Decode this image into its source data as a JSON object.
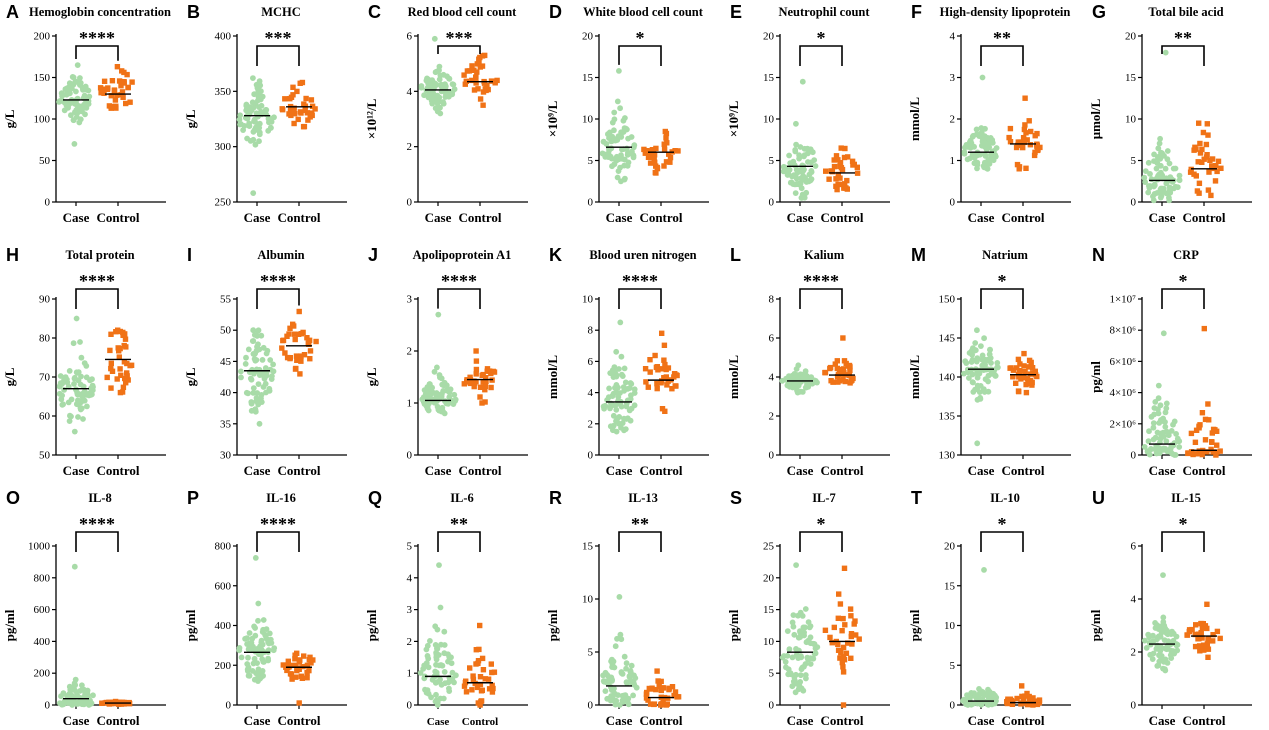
{
  "colors": {
    "case": "#a8dba8",
    "control": "#f07216",
    "axis": "#000000"
  },
  "categories": [
    "Case",
    "Control"
  ],
  "chart_data": [
    {
      "letter": "A",
      "type": "scatter",
      "title": "Hemoglobin concentration",
      "ylabel": "g/L",
      "ylim": [
        0,
        200
      ],
      "yticks": [
        "0",
        "50",
        "100",
        "150",
        "200"
      ],
      "tickvals": [
        0,
        50,
        100,
        150,
        200
      ],
      "sig": "****",
      "case": {
        "n": 75,
        "center": 124,
        "spread": 13,
        "min": 70,
        "max": 165,
        "median": 123
      },
      "control": {
        "n": 35,
        "center": 134,
        "spread": 14,
        "min": 113,
        "max": 163,
        "median": 130
      }
    },
    {
      "letter": "B",
      "type": "scatter",
      "title": "MCHC",
      "ylabel": "g/L",
      "ylim": [
        250,
        400
      ],
      "yticks": [
        "250",
        "300",
        "350",
        "400"
      ],
      "tickvals": [
        250,
        300,
        350,
        400
      ],
      "sig": "***",
      "case": {
        "n": 75,
        "center": 325,
        "spread": 14,
        "min": 258,
        "max": 362,
        "median": 328
      },
      "control": {
        "n": 35,
        "center": 336,
        "spread": 10,
        "min": 318,
        "max": 358,
        "median": 336
      }
    },
    {
      "letter": "C",
      "type": "scatter",
      "title": "Red blood cell count",
      "ylabel": "×10¹²/L",
      "ylim": [
        0,
        6
      ],
      "yticks": [
        "0",
        "2",
        "4",
        "6"
      ],
      "tickvals": [
        0,
        2,
        4,
        6
      ],
      "sig": "***",
      "case": {
        "n": 75,
        "center": 4.1,
        "spread": 0.35,
        "min": 3.2,
        "max": 5.9,
        "median": 4.05
      },
      "control": {
        "n": 35,
        "center": 4.45,
        "spread": 0.4,
        "min": 3.5,
        "max": 5.3,
        "median": 4.35
      }
    },
    {
      "letter": "D",
      "type": "scatter",
      "title": "White blood cell count",
      "ylabel": "×10⁹/L",
      "ylim": [
        0,
        20
      ],
      "yticks": [
        "0",
        "5",
        "10",
        "15",
        "20"
      ],
      "tickvals": [
        0,
        5,
        10,
        15,
        20
      ],
      "sig": "*",
      "case": {
        "n": 75,
        "center": 6.7,
        "spread": 2.0,
        "min": 2.5,
        "max": 15.8,
        "median": 6.6
      },
      "control": {
        "n": 35,
        "center": 6.0,
        "spread": 1.2,
        "min": 3.5,
        "max": 8.5,
        "median": 6.0
      }
    },
    {
      "letter": "E",
      "type": "scatter",
      "title": "Neutrophil count",
      "ylabel": "×10⁹/L",
      "ylim": [
        0,
        20
      ],
      "yticks": [
        "0",
        "5",
        "10",
        "15",
        "20"
      ],
      "tickvals": [
        0,
        5,
        10,
        15,
        20
      ],
      "sig": "*",
      "case": {
        "n": 75,
        "center": 4.3,
        "spread": 1.8,
        "min": 0.5,
        "max": 14.5,
        "median": 4.3
      },
      "control": {
        "n": 35,
        "center": 3.6,
        "spread": 1.1,
        "min": 1.5,
        "max": 6.5,
        "median": 3.5
      }
    },
    {
      "letter": "F",
      "type": "scatter",
      "title": "High-density lipoprotein",
      "ylabel": "mmol/L",
      "ylim": [
        0,
        4
      ],
      "yticks": [
        "0",
        "1",
        "2",
        "3",
        "4"
      ],
      "tickvals": [
        0,
        1,
        2,
        3,
        4
      ],
      "sig": "**",
      "case": {
        "n": 75,
        "center": 1.25,
        "spread": 0.25,
        "min": 0.8,
        "max": 3.0,
        "median": 1.2
      },
      "control": {
        "n": 35,
        "center": 1.45,
        "spread": 0.35,
        "min": 0.8,
        "max": 2.5,
        "median": 1.4
      }
    },
    {
      "letter": "G",
      "type": "scatter",
      "title": "Total bile acid",
      "ylabel": "μmol/L",
      "ylim": [
        0,
        20
      ],
      "yticks": [
        "0",
        "5",
        "10",
        "15",
        "20"
      ],
      "tickvals": [
        0,
        5,
        10,
        15,
        20
      ],
      "sig": "**",
      "case": {
        "n": 75,
        "center": 2.8,
        "spread": 2.2,
        "min": 0.2,
        "max": 18.0,
        "median": 2.6
      },
      "control": {
        "n": 35,
        "center": 4.5,
        "spread": 2.3,
        "min": 0.8,
        "max": 9.5,
        "median": 4.0
      }
    },
    {
      "letter": "H",
      "type": "scatter",
      "title": "Total protein",
      "ylabel": "g/L",
      "ylim": [
        50,
        90
      ],
      "yticks": [
        "50",
        "60",
        "70",
        "80",
        "90"
      ],
      "tickvals": [
        50,
        60,
        70,
        80,
        90
      ],
      "sig": "****",
      "case": {
        "n": 75,
        "center": 67,
        "spread": 5,
        "min": 56,
        "max": 85,
        "median": 67
      },
      "control": {
        "n": 35,
        "center": 74,
        "spread": 4,
        "min": 66,
        "max": 82,
        "median": 74.5
      }
    },
    {
      "letter": "I",
      "type": "scatter",
      "title": "Albumin",
      "ylabel": "g/L",
      "ylim": [
        30,
        55
      ],
      "yticks": [
        "30",
        "35",
        "40",
        "45",
        "50",
        "55"
      ],
      "tickvals": [
        30,
        35,
        40,
        45,
        50,
        55
      ],
      "sig": "****",
      "case": {
        "n": 75,
        "center": 43,
        "spread": 3,
        "min": 35,
        "max": 50,
        "median": 43.5
      },
      "control": {
        "n": 35,
        "center": 47.5,
        "spread": 2,
        "min": 43,
        "max": 53,
        "median": 47.5
      }
    },
    {
      "letter": "J",
      "type": "scatter",
      "title": "Apolipoprotein A1",
      "ylabel": "g/L",
      "ylim": [
        0,
        3
      ],
      "yticks": [
        "0",
        "1",
        "2",
        "3"
      ],
      "tickvals": [
        0,
        1,
        2,
        3
      ],
      "sig": "****",
      "case": {
        "n": 75,
        "center": 1.1,
        "spread": 0.2,
        "min": 0.8,
        "max": 2.7,
        "median": 1.05
      },
      "control": {
        "n": 35,
        "center": 1.45,
        "spread": 0.2,
        "min": 1.0,
        "max": 2.0,
        "median": 1.45
      }
    },
    {
      "letter": "K",
      "type": "scatter",
      "title": "Blood uren nitrogen",
      "ylabel": "mmol/L",
      "ylim": [
        0,
        10
      ],
      "yticks": [
        "0",
        "2",
        "4",
        "6",
        "8",
        "10"
      ],
      "tickvals": [
        0,
        2,
        4,
        6,
        8,
        10
      ],
      "sig": "****",
      "case": {
        "n": 75,
        "center": 3.5,
        "spread": 1.2,
        "min": 1.5,
        "max": 8.5,
        "median": 3.4
      },
      "control": {
        "n": 35,
        "center": 4.9,
        "spread": 1.1,
        "min": 2.8,
        "max": 7.8,
        "median": 4.8
      }
    },
    {
      "letter": "L",
      "type": "scatter",
      "title": "Kalium",
      "ylabel": "mmol/L",
      "ylim": [
        0,
        8
      ],
      "yticks": [
        "0",
        "2",
        "4",
        "6",
        "8"
      ],
      "tickvals": [
        0,
        2,
        4,
        6,
        8
      ],
      "sig": "****",
      "case": {
        "n": 75,
        "center": 3.8,
        "spread": 0.25,
        "min": 3.2,
        "max": 4.6,
        "median": 3.8
      },
      "control": {
        "n": 35,
        "center": 4.15,
        "spread": 0.3,
        "min": 3.7,
        "max": 6.0,
        "median": 4.1
      }
    },
    {
      "letter": "M",
      "type": "scatter",
      "title": "Natrium",
      "ylabel": "mmol/L",
      "ylim": [
        130,
        150
      ],
      "yticks": [
        "130",
        "135",
        "140",
        "145",
        "150"
      ],
      "tickvals": [
        130,
        135,
        140,
        145,
        150
      ],
      "sig": "*",
      "case": {
        "n": 75,
        "center": 141,
        "spread": 2,
        "min": 131.5,
        "max": 146,
        "median": 141
      },
      "control": {
        "n": 35,
        "center": 140.3,
        "spread": 1.2,
        "min": 138,
        "max": 143,
        "median": 140.3
      }
    },
    {
      "letter": "N",
      "type": "scatter",
      "title": "CRP",
      "ylabel": "pg/ml",
      "ylim": [
        0,
        10000000
      ],
      "yticks": [
        "0",
        "2×10⁶",
        "4×10⁶",
        "6×10⁶",
        "8×10⁶",
        "1×10⁷"
      ],
      "tickvals": [
        0,
        2000000,
        4000000,
        6000000,
        8000000,
        10000000
      ],
      "sig": "*",
      "case": {
        "n": 75,
        "center": 900000,
        "spread": 1400000,
        "min": 0,
        "max": 7800000,
        "median": 700000
      },
      "control": {
        "n": 35,
        "center": 500000,
        "spread": 1200000,
        "min": 0,
        "max": 8100000,
        "median": 300000
      }
    },
    {
      "letter": "O",
      "type": "scatter",
      "title": "IL-8",
      "ylabel": "pg/ml",
      "ylim": [
        0,
        1000
      ],
      "yticks": [
        "0",
        "200",
        "400",
        "600",
        "800",
        "1000"
      ],
      "tickvals": [
        0,
        200,
        400,
        600,
        800,
        1000
      ],
      "sig": "****",
      "case": {
        "n": 75,
        "center": 40,
        "spread": 60,
        "min": 0,
        "max": 870,
        "median": 40
      },
      "control": {
        "n": 35,
        "center": 12,
        "spread": 4,
        "min": 5,
        "max": 22,
        "median": 12
      }
    },
    {
      "letter": "P",
      "type": "scatter",
      "title": "IL-16",
      "ylabel": "pg/ml",
      "ylim": [
        0,
        800
      ],
      "yticks": [
        "0",
        "200",
        "400",
        "600",
        "800"
      ],
      "tickvals": [
        0,
        200,
        400,
        600,
        800
      ],
      "sig": "****",
      "case": {
        "n": 75,
        "center": 280,
        "spread": 90,
        "min": 120,
        "max": 740,
        "median": 265
      },
      "control": {
        "n": 35,
        "center": 195,
        "spread": 40,
        "min": 10,
        "max": 260,
        "median": 190
      }
    },
    {
      "letter": "Q",
      "type": "scatter",
      "title": "IL-6",
      "ylabel": "pg/ml",
      "ylim": [
        0,
        5
      ],
      "yticks": [
        "0",
        "1",
        "2",
        "3",
        "4",
        "5"
      ],
      "tickvals": [
        0,
        1,
        2,
        3,
        4,
        5
      ],
      "sig": "**",
      "case": {
        "n": 75,
        "center": 1.0,
        "spread": 0.7,
        "min": 0,
        "max": 4.4,
        "median": 0.9
      },
      "control": {
        "n": 35,
        "center": 0.75,
        "spread": 0.5,
        "min": 0,
        "max": 2.5,
        "median": 0.7
      }
    },
    {
      "letter": "R",
      "type": "scatter",
      "title": "IL-13",
      "ylabel": "pg/ml",
      "ylim": [
        0,
        15
      ],
      "yticks": [
        "0",
        "5",
        "10",
        "15"
      ],
      "tickvals": [
        0,
        5,
        10,
        15
      ],
      "sig": "**",
      "case": {
        "n": 75,
        "center": 2.0,
        "spread": 1.8,
        "min": 0,
        "max": 10.2,
        "median": 1.8
      },
      "control": {
        "n": 35,
        "center": 0.9,
        "spread": 0.8,
        "min": 0,
        "max": 3.2,
        "median": 0.7
      }
    },
    {
      "letter": "S",
      "type": "scatter",
      "title": "IL-7",
      "ylabel": "pg/ml",
      "ylim": [
        0,
        25
      ],
      "yticks": [
        "0",
        "5",
        "10",
        "15",
        "20",
        "25"
      ],
      "tickvals": [
        0,
        5,
        10,
        15,
        20,
        25
      ],
      "sig": "*",
      "case": {
        "n": 75,
        "center": 8.5,
        "spread": 3.5,
        "min": 2,
        "max": 22,
        "median": 8.3
      },
      "control": {
        "n": 35,
        "center": 10.5,
        "spread": 3.5,
        "min": 0,
        "max": 21.5,
        "median": 10
      }
    },
    {
      "letter": "T",
      "type": "scatter",
      "title": "IL-10",
      "ylabel": "pg/ml",
      "ylim": [
        0,
        20
      ],
      "yticks": [
        "0",
        "5",
        "10",
        "15",
        "20"
      ],
      "tickvals": [
        0,
        5,
        10,
        15,
        20
      ],
      "sig": "*",
      "case": {
        "n": 75,
        "center": 0.6,
        "spread": 0.8,
        "min": 0,
        "max": 17,
        "median": 0.5
      },
      "control": {
        "n": 35,
        "center": 0.4,
        "spread": 0.5,
        "min": 0,
        "max": 2.4,
        "median": 0.3
      }
    },
    {
      "letter": "U",
      "type": "scatter",
      "title": "IL-15",
      "ylabel": "pg/ml",
      "ylim": [
        0,
        6
      ],
      "yticks": [
        "0",
        "2",
        "4",
        "6"
      ],
      "tickvals": [
        0,
        2,
        4,
        6
      ],
      "sig": "*",
      "case": {
        "n": 75,
        "center": 2.35,
        "spread": 0.45,
        "min": 1.3,
        "max": 4.9,
        "median": 2.3
      },
      "control": {
        "n": 35,
        "center": 2.6,
        "spread": 0.35,
        "min": 1.8,
        "max": 3.8,
        "median": 2.6
      }
    }
  ]
}
